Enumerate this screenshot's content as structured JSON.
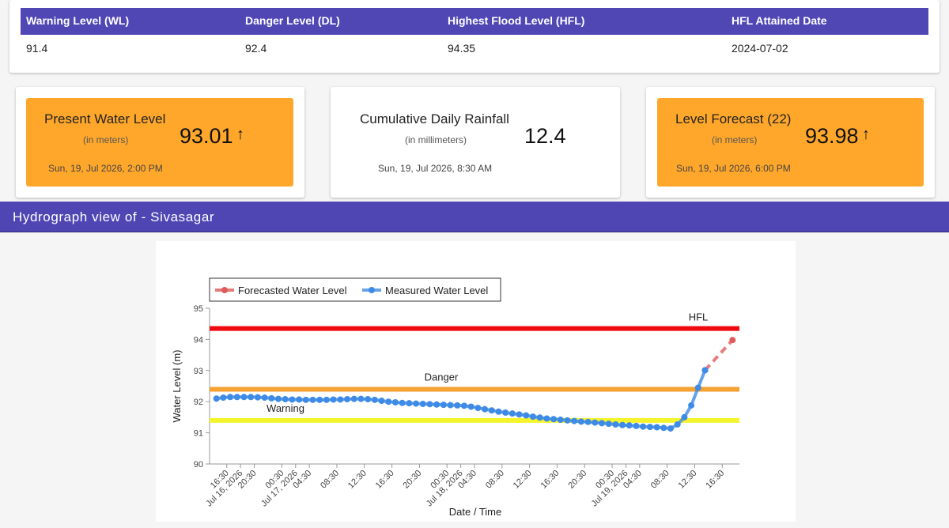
{
  "table": {
    "headers": [
      "Warning Level (WL)",
      "Danger Level (DL)",
      "Highest Flood Level (HFL)",
      "HFL Attained Date"
    ],
    "rows": [
      [
        91.4,
        92.4,
        94.35,
        "2024-07-02"
      ]
    ]
  },
  "cards": [
    {
      "title": "Present Water Level",
      "unit": "(in meters)",
      "value": 93.01,
      "time": "Sun, 19, Jul 2026, 2:00 PM"
    },
    {
      "title": "Cumulative Daily Rainfall",
      "unit": "(in millimeters)",
      "value": 12.4,
      "time": "Sun, 19, Jul 2026, 8:30 AM"
    },
    {
      "title": "Level Forecast (22)",
      "unit": "(in meters)",
      "value": 93.98,
      "time": "Sun, 19, Jul 2026, 6:00 PM"
    }
  ],
  "section": {
    "title": "Hydrograph view of - Sivasagar"
  },
  "chart_data": {
    "type": "line",
    "x_label": "Date / Time",
    "y_label": "Water Level (m)",
    "xlim": [
      "2026-07-16 14:00",
      "2026-07-19 19:00"
    ],
    "ylim": [
      90,
      95
    ],
    "yticks": [
      90,
      91,
      92,
      93,
      94,
      95
    ],
    "xticks": [
      {
        "value": "2026-07-16 16:30",
        "label": "16:30"
      },
      {
        "value": "2026-07-16 18:30",
        "label": "Jul 16, 2026"
      },
      {
        "value": "2026-07-16 20:30",
        "label": "20:30"
      },
      {
        "value": "2026-07-17 00:30",
        "label": "00:30"
      },
      {
        "value": "2026-07-17 02:30",
        "label": "Jul 17, 2026"
      },
      {
        "value": "2026-07-17 04:30",
        "label": "04:30"
      },
      {
        "value": "2026-07-17 08:30",
        "label": "08:30"
      },
      {
        "value": "2026-07-17 12:30",
        "label": "12:30"
      },
      {
        "value": "2026-07-17 16:30",
        "label": "16:30"
      },
      {
        "value": "2026-07-17 20:30",
        "label": "20:30"
      },
      {
        "value": "2026-07-18 00:30",
        "label": "00:30"
      },
      {
        "value": "2026-07-18 02:30",
        "label": "Jul 18, 2026"
      },
      {
        "value": "2026-07-18 04:30",
        "label": "04:30"
      },
      {
        "value": "2026-07-18 08:30",
        "label": "08:30"
      },
      {
        "value": "2026-07-18 12:30",
        "label": "12:30"
      },
      {
        "value": "2026-07-18 16:30",
        "label": "16:30"
      },
      {
        "value": "2026-07-18 20:30",
        "label": "20:30"
      },
      {
        "value": "2026-07-19 00:30",
        "label": "00:30"
      },
      {
        "value": "2026-07-19 02:30",
        "label": "Jul 19, 2026"
      },
      {
        "value": "2026-07-19 04:30",
        "label": "04:30"
      },
      {
        "value": "2026-07-19 08:30",
        "label": "08:30"
      },
      {
        "value": "2026-07-19 12:30",
        "label": "12:30"
      },
      {
        "value": "2026-07-19 16:30",
        "label": "16:30"
      }
    ],
    "reference_lines": [
      {
        "label": "HFL",
        "value": 94.35,
        "color": "#ee0a10"
      },
      {
        "label": "Danger",
        "value": 92.4,
        "color": "#f5a232"
      },
      {
        "label": "Warning",
        "value": 91.4,
        "color": "#f4f42c"
      }
    ],
    "series": [
      {
        "name": "Forecasted Water Level",
        "color": "#e05a5a",
        "dashed": true,
        "x": [
          "2026-07-19 14:00",
          "2026-07-19 18:00"
        ],
        "values": [
          93.01,
          93.98
        ]
      },
      {
        "name": "Measured Water Level",
        "color": "#3d8be6",
        "dashed": false,
        "x": [
          "2026-07-16 15:00",
          "2026-07-16 16:00",
          "2026-07-16 17:00",
          "2026-07-16 18:00",
          "2026-07-16 19:00",
          "2026-07-16 20:00",
          "2026-07-16 21:00",
          "2026-07-16 22:00",
          "2026-07-16 23:00",
          "2026-07-17 00:00",
          "2026-07-17 01:00",
          "2026-07-17 02:00",
          "2026-07-17 03:00",
          "2026-07-17 04:00",
          "2026-07-17 05:00",
          "2026-07-17 06:00",
          "2026-07-17 07:00",
          "2026-07-17 08:00",
          "2026-07-17 09:00",
          "2026-07-17 10:00",
          "2026-07-17 11:00",
          "2026-07-17 12:00",
          "2026-07-17 13:00",
          "2026-07-17 14:00",
          "2026-07-17 15:00",
          "2026-07-17 16:00",
          "2026-07-17 17:00",
          "2026-07-17 18:00",
          "2026-07-17 19:00",
          "2026-07-17 20:00",
          "2026-07-17 21:00",
          "2026-07-17 22:00",
          "2026-07-17 23:00",
          "2026-07-18 00:00",
          "2026-07-18 01:00",
          "2026-07-18 02:00",
          "2026-07-18 03:00",
          "2026-07-18 04:00",
          "2026-07-18 05:00",
          "2026-07-18 06:00",
          "2026-07-18 07:00",
          "2026-07-18 08:00",
          "2026-07-18 09:00",
          "2026-07-18 10:00",
          "2026-07-18 11:00",
          "2026-07-18 12:00",
          "2026-07-18 13:00",
          "2026-07-18 14:00",
          "2026-07-18 15:00",
          "2026-07-18 16:00",
          "2026-07-18 17:00",
          "2026-07-18 18:00",
          "2026-07-18 19:00",
          "2026-07-18 20:00",
          "2026-07-18 21:00",
          "2026-07-18 22:00",
          "2026-07-18 23:00",
          "2026-07-19 00:00",
          "2026-07-19 01:00",
          "2026-07-19 02:00",
          "2026-07-19 03:00",
          "2026-07-19 04:00",
          "2026-07-19 05:00",
          "2026-07-19 06:00",
          "2026-07-19 07:00",
          "2026-07-19 08:00",
          "2026-07-19 09:00",
          "2026-07-19 10:00",
          "2026-07-19 11:00",
          "2026-07-19 12:00",
          "2026-07-19 13:00",
          "2026-07-19 14:00"
        ],
        "values": [
          92.1,
          92.13,
          92.15,
          92.15,
          92.15,
          92.15,
          92.14,
          92.13,
          92.11,
          92.09,
          92.08,
          92.07,
          92.07,
          92.06,
          92.06,
          92.06,
          92.06,
          92.07,
          92.07,
          92.08,
          92.09,
          92.09,
          92.08,
          92.06,
          92.03,
          92.0,
          91.98,
          91.96,
          91.95,
          91.94,
          91.93,
          91.92,
          91.91,
          91.9,
          91.89,
          91.88,
          91.87,
          91.84,
          91.8,
          91.76,
          91.72,
          91.68,
          91.65,
          91.62,
          91.59,
          91.56,
          91.52,
          91.49,
          91.46,
          91.44,
          91.42,
          91.4,
          91.38,
          91.36,
          91.35,
          91.33,
          91.31,
          91.29,
          91.27,
          91.25,
          91.24,
          91.22,
          91.2,
          91.19,
          91.18,
          91.16,
          91.14,
          91.27,
          91.5,
          91.88,
          92.45,
          93.01
        ]
      }
    ]
  }
}
